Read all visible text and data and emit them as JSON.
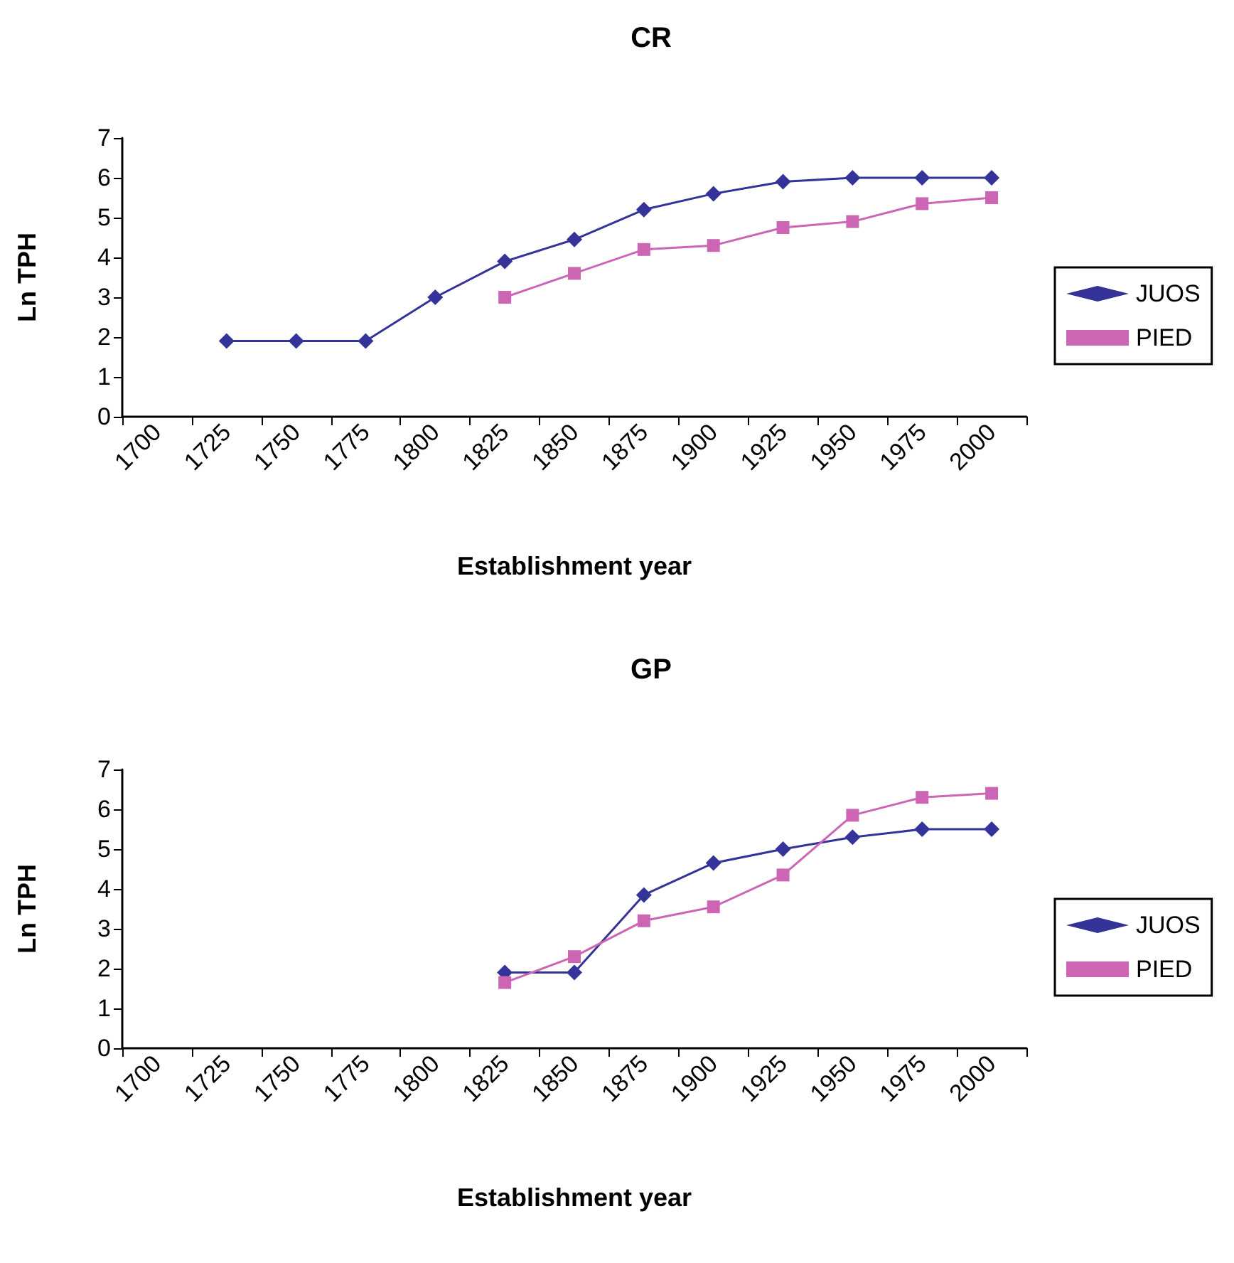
{
  "chart_data": [
    {
      "type": "line",
      "title": "CR",
      "xlabel": "Establishment year",
      "ylabel": "Ln TPH",
      "categories": [
        "1700",
        "1725",
        "1750",
        "1775",
        "1800",
        "1825",
        "1850",
        "1875",
        "1900",
        "1925",
        "1950",
        "1975",
        "2000"
      ],
      "ylim": [
        0,
        7
      ],
      "yticks": [
        0,
        1,
        2,
        3,
        4,
        5,
        6,
        7
      ],
      "grid": false,
      "legend": "right",
      "series": [
        {
          "name": "JUOS",
          "color": "#333399",
          "marker": "diamond",
          "values": [
            null,
            1.9,
            1.9,
            1.9,
            3.0,
            3.9,
            4.45,
            5.2,
            5.6,
            5.9,
            6.0,
            6.0,
            6.0
          ]
        },
        {
          "name": "PIED",
          "color": "#cc66b4",
          "marker": "square",
          "values": [
            null,
            null,
            null,
            null,
            null,
            3.0,
            3.6,
            4.2,
            4.3,
            4.75,
            4.9,
            5.35,
            5.5
          ]
        }
      ]
    },
    {
      "type": "line",
      "title": "GP",
      "xlabel": "Establishment year",
      "ylabel": "Ln TPH",
      "categories": [
        "1700",
        "1725",
        "1750",
        "1775",
        "1800",
        "1825",
        "1850",
        "1875",
        "1900",
        "1925",
        "1950",
        "1975",
        "2000"
      ],
      "ylim": [
        0,
        7
      ],
      "yticks": [
        0,
        1,
        2,
        3,
        4,
        5,
        6,
        7
      ],
      "grid": false,
      "legend": "right",
      "series": [
        {
          "name": "JUOS",
          "color": "#333399",
          "marker": "diamond",
          "values": [
            null,
            null,
            null,
            null,
            null,
            1.9,
            1.9,
            3.85,
            4.65,
            5.0,
            5.3,
            5.5,
            5.5
          ]
        },
        {
          "name": "PIED",
          "color": "#cc66b4",
          "marker": "square",
          "values": [
            null,
            null,
            null,
            null,
            null,
            1.65,
            2.3,
            3.2,
            3.55,
            4.35,
            5.85,
            6.3,
            6.4
          ]
        }
      ]
    }
  ]
}
